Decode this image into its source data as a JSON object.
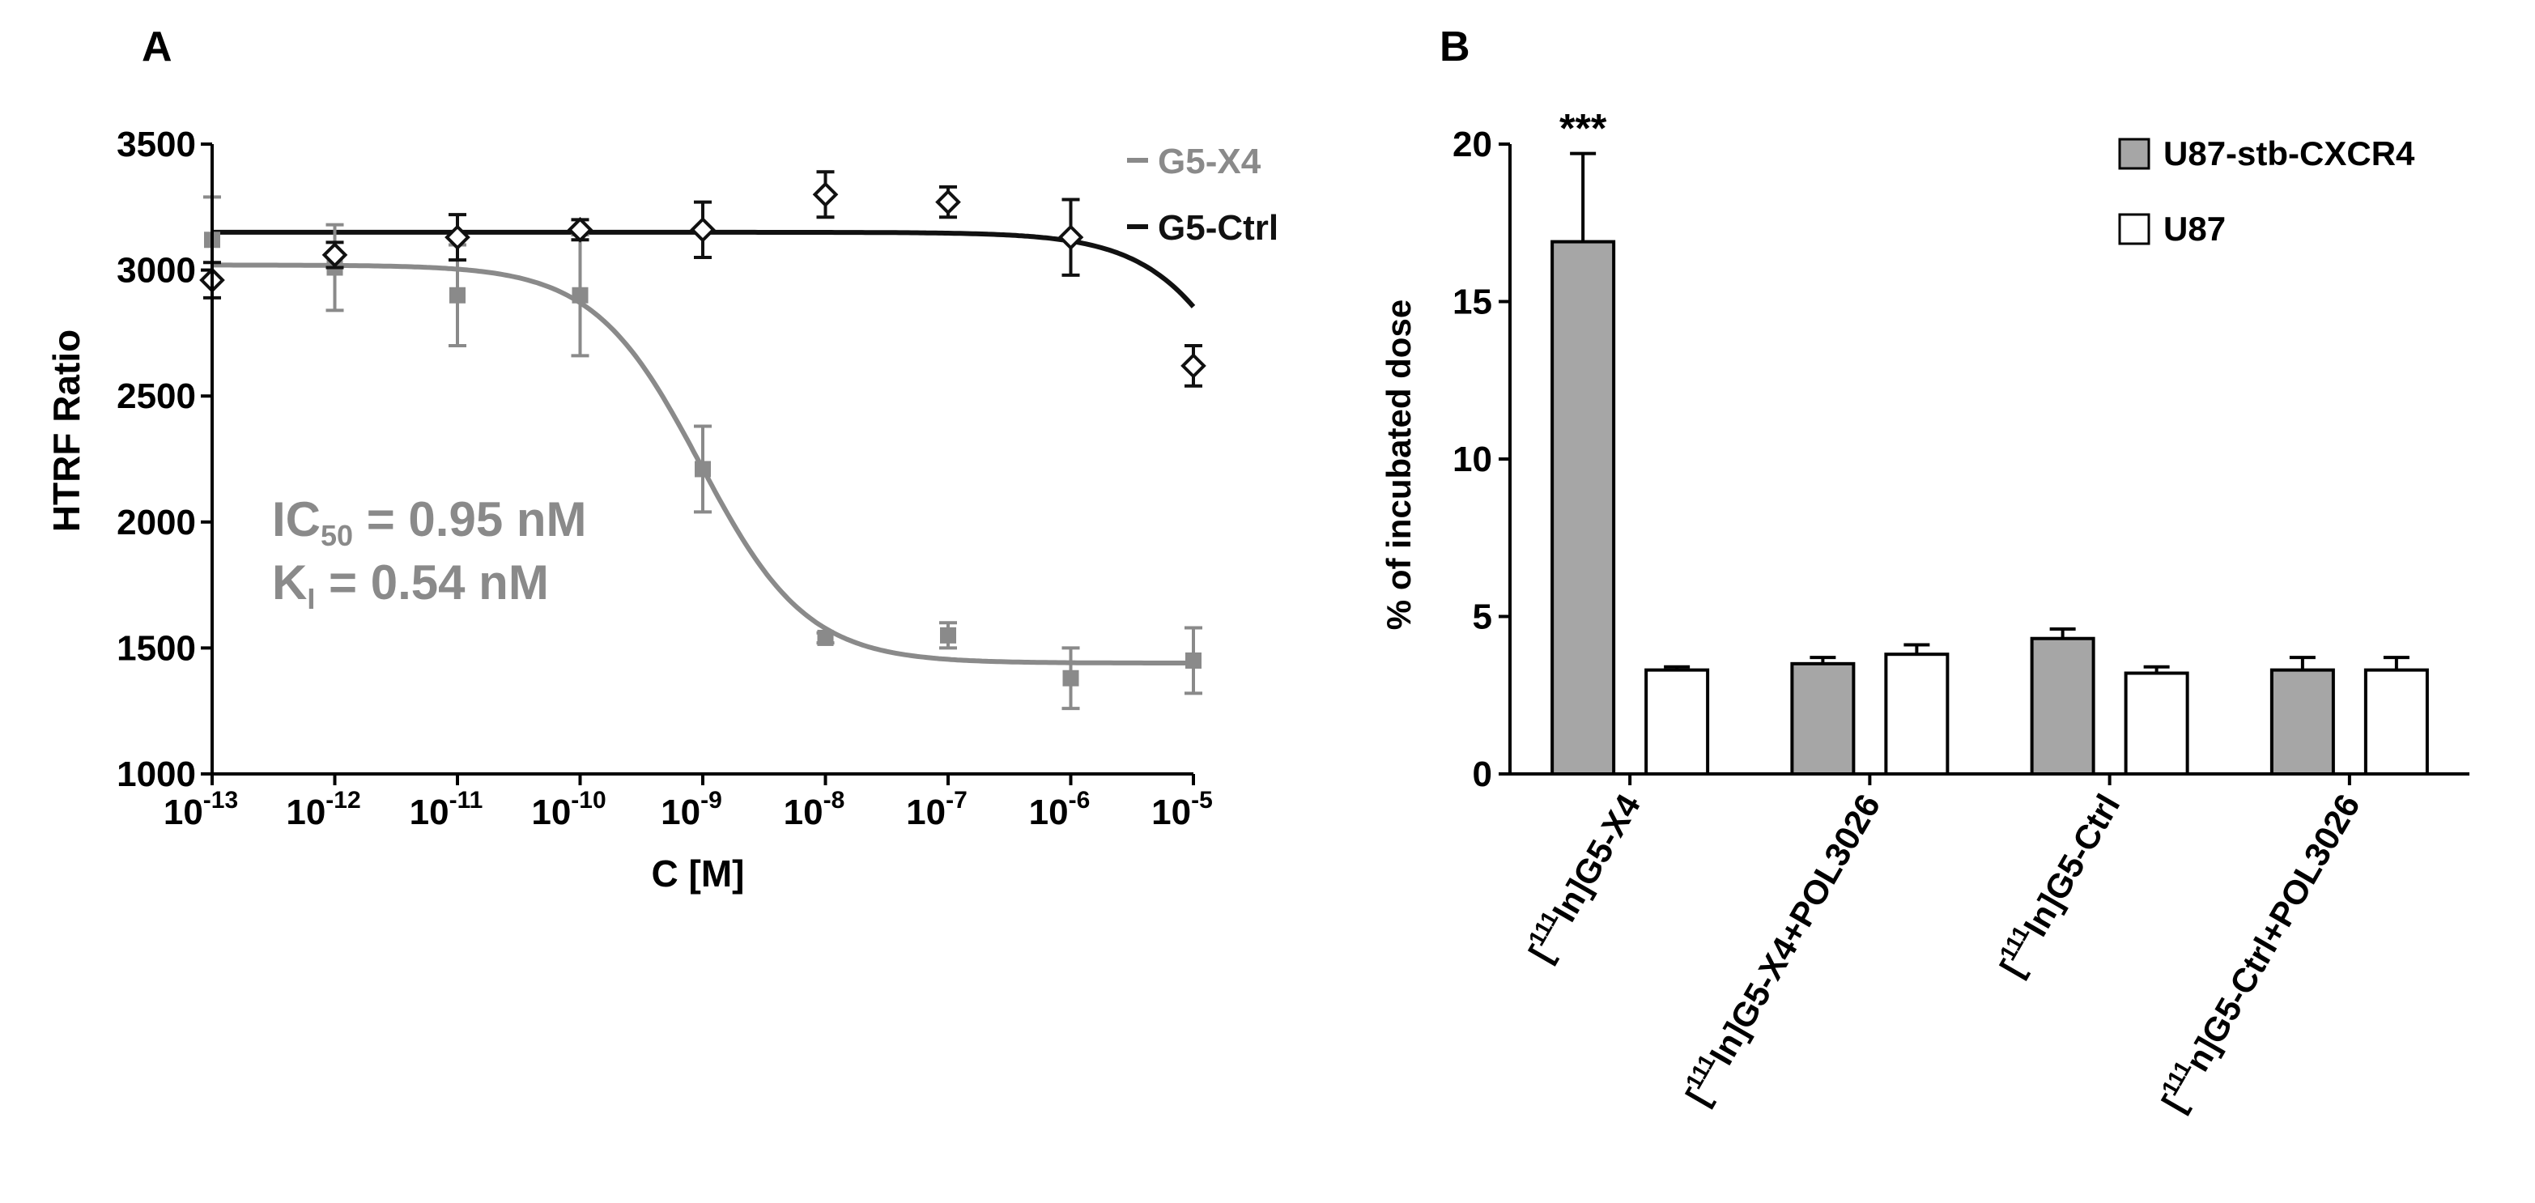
{
  "chart_data": [
    {
      "panel": "A",
      "type": "scatter",
      "xscale": "log",
      "xlabel": "C [M]",
      "ylabel": "HTRF Ratio",
      "ylim": [
        1000,
        3500
      ],
      "yticks": [
        "1000",
        "1500",
        "2000",
        "2500",
        "3000",
        "3500"
      ],
      "xtick_exponents": [
        -13,
        -12,
        -11,
        -10,
        -9,
        -8,
        -7,
        -6,
        -5
      ],
      "xtick_base": "10",
      "series": [
        {
          "name": "G5-X4",
          "color": "#8a8a8a",
          "marker": "square",
          "log_x": [
            -13,
            -12,
            -11,
            -10,
            -9,
            -8,
            -7,
            -6,
            -5
          ],
          "y": [
            3120,
            3010,
            2900,
            2900,
            2210,
            1540,
            1550,
            1380,
            1450
          ],
          "err": [
            170,
            170,
            200,
            240,
            170,
            20,
            50,
            120,
            130
          ],
          "fit": {
            "top": 3020,
            "bottom": 1440,
            "log_ic50": -9.02,
            "hill": 1.0
          }
        },
        {
          "name": "G5-Ctrl",
          "color": "#111111",
          "marker": "diamond",
          "log_x": [
            -13,
            -12,
            -11,
            -10,
            -9,
            -8,
            -7,
            -6,
            -5
          ],
          "y": [
            2960,
            3060,
            3130,
            3160,
            3160,
            3300,
            3270,
            3130,
            2620
          ],
          "err": [
            70,
            50,
            90,
            40,
            110,
            90,
            60,
            150,
            80
          ],
          "fit": {
            "top": 3150,
            "bottom": 1440,
            "log_ic50": -4.32,
            "hill": 1.0
          }
        }
      ],
      "annotation": {
        "ic50_label": "IC",
        "ic50_sub": "50",
        "ic50_value": " = 0.95 nM",
        "ki_label": "K",
        "ki_sub": "I",
        "ki_value": " = 0.54 nM"
      }
    },
    {
      "panel": "B",
      "type": "bar",
      "ylabel": "% of incubated dose",
      "ylim": [
        0,
        20
      ],
      "yticks": [
        "0",
        "5",
        "10",
        "15",
        "20"
      ],
      "categories": [
        {
          "pre": "[",
          "sup": "111",
          "post": "In]G5-X4"
        },
        {
          "pre": "[",
          "sup": "111",
          "post": "In]G5-X4+POL3026"
        },
        {
          "pre": "[",
          "sup": "111",
          "post": "In]G5-Ctrl"
        },
        {
          "pre": "[",
          "sup": "111",
          "post": "n]G5-Ctrl+POL3026"
        }
      ],
      "series": [
        {
          "name": "U87-stb-CXCR4",
          "color": "#a6a6a6",
          "values": [
            16.9,
            3.5,
            4.3,
            3.3
          ],
          "err": [
            2.8,
            0.2,
            0.3,
            0.4
          ]
        },
        {
          "name": "U87",
          "color": "#ffffff",
          "values": [
            3.3,
            3.8,
            3.2,
            3.3
          ],
          "err": [
            0.1,
            0.3,
            0.2,
            0.4
          ]
        }
      ],
      "significance": {
        "category_index": 0,
        "label": "***"
      }
    }
  ],
  "panel_labels": {
    "a": "A",
    "b": "B"
  }
}
